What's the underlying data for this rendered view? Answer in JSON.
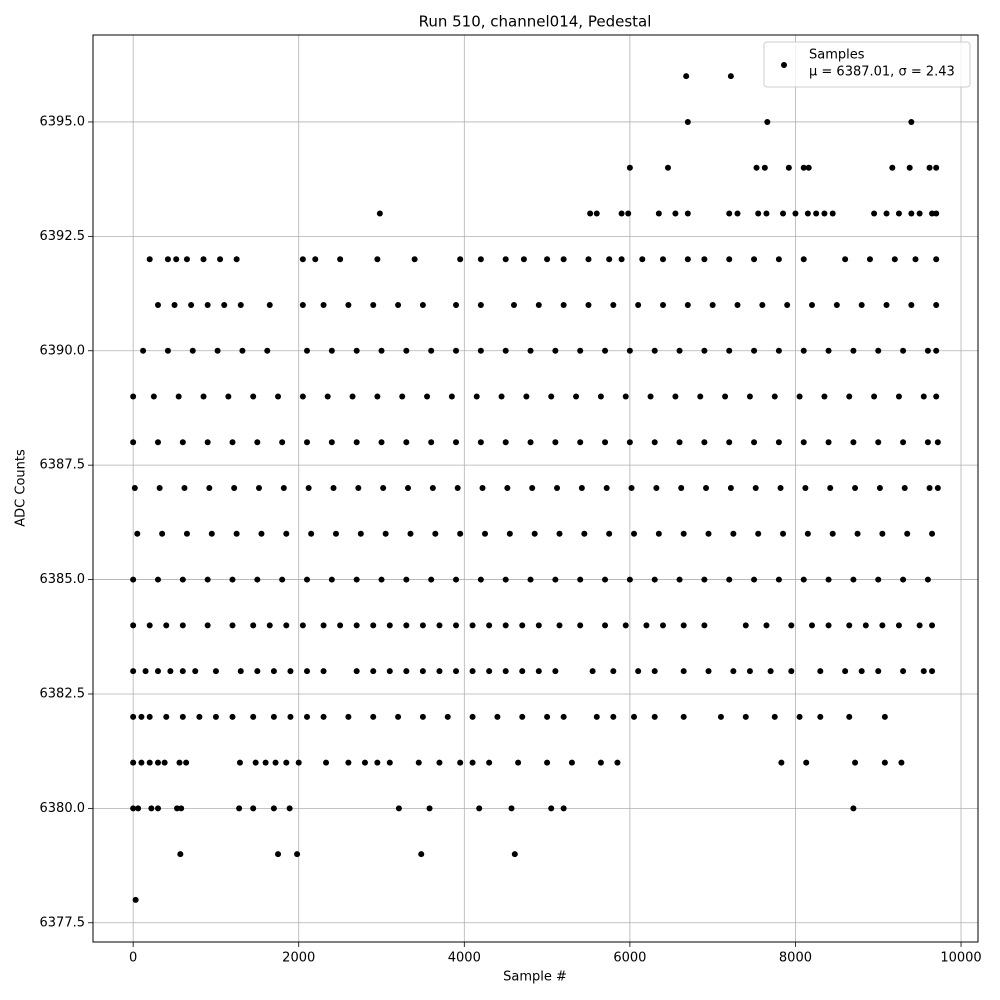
{
  "chart_data": {
    "type": "scatter",
    "title": "Run 510, channel014, Pedestal",
    "x_label": "Sample #",
    "y_label": "ADC Counts",
    "xlim": [
      -485,
      10205
    ],
    "ylim": [
      6377.08,
      6396.9
    ],
    "xticks": [
      0,
      2000,
      4000,
      6000,
      8000,
      10000
    ],
    "yticks": [
      6377.5,
      {
        "value": 6380,
        "label": "6380.0"
      },
      6382.5,
      {
        "value": 6385,
        "label": "6385.0"
      },
      6387.5,
      {
        "value": 6390,
        "label": "6390.0"
      },
      6392.5,
      {
        "value": 6395,
        "label": "6395.0"
      }
    ],
    "grid": true,
    "legend": "upper right",
    "annotation": "μ = 6387.01, σ = 2.43",
    "series": [
      {
        "name": "Samples",
        "color": "#000000",
        "x": [
          30,
          570,
          1750,
          1980,
          3480,
          4610,
          0,
          60,
          220,
          300,
          530,
          580,
          1280,
          1450,
          1700,
          1890,
          3210,
          3580,
          4180,
          4570,
          5050,
          5200,
          8700,
          0,
          100,
          200,
          300,
          380,
          560,
          640,
          1290,
          1480,
          1600,
          1720,
          1850,
          2000,
          2330,
          2600,
          2800,
          2950,
          3100,
          3450,
          3700,
          3950,
          4100,
          4300,
          4650,
          5000,
          5300,
          5650,
          5850,
          7830,
          8130,
          8720,
          9080,
          9280,
          0,
          100,
          200,
          400,
          600,
          800,
          1000,
          1200,
          1450,
          1700,
          1900,
          2100,
          2300,
          2600,
          2900,
          3200,
          3500,
          3800,
          4100,
          4400,
          4700,
          5000,
          5200,
          5600,
          5800,
          6050,
          6300,
          6650,
          7100,
          7400,
          7750,
          8050,
          8300,
          8650,
          9080,
          0,
          150,
          300,
          450,
          600,
          750,
          1000,
          1300,
          1500,
          1700,
          1900,
          2100,
          2300,
          2700,
          2900,
          3100,
          3300,
          3500,
          3700,
          3900,
          4100,
          4300,
          4500,
          4700,
          4900,
          5100,
          5550,
          5800,
          6100,
          6300,
          6650,
          6950,
          7250,
          7450,
          7700,
          7950,
          8300,
          8600,
          8800,
          9000,
          9300,
          9550,
          9650,
          0,
          200,
          400,
          600,
          900,
          1200,
          1450,
          1650,
          1850,
          2050,
          2300,
          2500,
          2700,
          2900,
          3100,
          3300,
          3500,
          3700,
          3900,
          4100,
          4300,
          4500,
          4700,
          4900,
          5150,
          5400,
          5700,
          5950,
          6200,
          6400,
          6650,
          6900,
          7400,
          7650,
          7950,
          8200,
          8400,
          8650,
          8850,
          9050,
          9250,
          9500,
          9650,
          0,
          300,
          600,
          900,
          1200,
          1500,
          1800,
          2100,
          2400,
          2700,
          3000,
          3300,
          3600,
          3900,
          4200,
          4500,
          4800,
          5100,
          5400,
          5700,
          6000,
          6300,
          6600,
          6900,
          7200,
          7500,
          7800,
          8100,
          8400,
          8700,
          9000,
          9300,
          9600,
          50,
          350,
          650,
          950,
          1250,
          1550,
          1850,
          2150,
          2450,
          2750,
          3050,
          3350,
          3650,
          3950,
          4250,
          4550,
          4850,
          5150,
          5450,
          5750,
          6050,
          6350,
          6650,
          6950,
          7250,
          7550,
          7850,
          8150,
          8450,
          8750,
          9050,
          9350,
          9650,
          20,
          320,
          620,
          920,
          1220,
          1520,
          1820,
          2120,
          2420,
          2720,
          3020,
          3320,
          3620,
          3920,
          4220,
          4520,
          4820,
          5120,
          5420,
          5720,
          6020,
          6320,
          6620,
          6920,
          7220,
          7520,
          7820,
          8120,
          8420,
          8720,
          9020,
          9320,
          9620,
          9720,
          0,
          300,
          600,
          900,
          1200,
          1500,
          1800,
          2100,
          2400,
          2700,
          3000,
          3300,
          3600,
          3900,
          4200,
          4500,
          4800,
          5100,
          5400,
          5700,
          6000,
          6300,
          6600,
          6900,
          7200,
          7500,
          7800,
          8100,
          8400,
          8700,
          9000,
          9300,
          9600,
          9720,
          0,
          250,
          550,
          850,
          1150,
          1450,
          1750,
          2050,
          2350,
          2650,
          2950,
          3250,
          3550,
          3850,
          4150,
          4450,
          4750,
          5050,
          5350,
          5650,
          5950,
          6250,
          6550,
          6850,
          7150,
          7450,
          7750,
          8050,
          8350,
          8650,
          8950,
          9250,
          9550,
          9700,
          120,
          420,
          720,
          1020,
          1320,
          1620,
          2100,
          2400,
          2700,
          3000,
          3300,
          3600,
          3900,
          4200,
          4500,
          4800,
          5100,
          5400,
          5700,
          6000,
          6300,
          6600,
          6900,
          7200,
          7500,
          7800,
          8100,
          8400,
          8700,
          9000,
          9300,
          9600,
          9700,
          300,
          500,
          700,
          900,
          1100,
          1300,
          1650,
          2050,
          2300,
          2600,
          2900,
          3200,
          3500,
          3900,
          4200,
          4600,
          4900,
          5200,
          5500,
          5800,
          6100,
          6400,
          6700,
          7000,
          7300,
          7600,
          7900,
          8200,
          8500,
          8800,
          9100,
          9400,
          9700,
          200,
          420,
          520,
          650,
          850,
          1050,
          1250,
          2050,
          2200,
          2500,
          2950,
          3400,
          3950,
          4200,
          4500,
          4720,
          5000,
          5200,
          5500,
          5750,
          5900,
          6150,
          6400,
          6700,
          6900,
          7200,
          7500,
          7800,
          8100,
          8600,
          8900,
          9200,
          9450,
          9700,
          2980,
          5520,
          5600,
          5900,
          5980,
          6350,
          6550,
          6700,
          7200,
          7300,
          7550,
          7650,
          7850,
          8000,
          8150,
          8250,
          8350,
          8450,
          8950,
          9100,
          9250,
          9400,
          9500,
          9650,
          9700,
          6000,
          6460,
          7530,
          7630,
          7920,
          8100,
          8160,
          9170,
          9380,
          9620,
          9700,
          6700,
          7660,
          9400,
          6680,
          7220
        ],
        "y": [
          6378,
          6379,
          6379,
          6379,
          6379,
          6379,
          6380,
          6380,
          6380,
          6380,
          6380,
          6380,
          6380,
          6380,
          6380,
          6380,
          6380,
          6380,
          6380,
          6380,
          6380,
          6380,
          6380,
          6381,
          6381,
          6381,
          6381,
          6381,
          6381,
          6381,
          6381,
          6381,
          6381,
          6381,
          6381,
          6381,
          6381,
          6381,
          6381,
          6381,
          6381,
          6381,
          6381,
          6381,
          6381,
          6381,
          6381,
          6381,
          6381,
          6381,
          6381,
          6381,
          6381,
          6381,
          6381,
          6381,
          6382,
          6382,
          6382,
          6382,
          6382,
          6382,
          6382,
          6382,
          6382,
          6382,
          6382,
          6382,
          6382,
          6382,
          6382,
          6382,
          6382,
          6382,
          6382,
          6382,
          6382,
          6382,
          6382,
          6382,
          6382,
          6382,
          6382,
          6382,
          6382,
          6382,
          6382,
          6382,
          6382,
          6382,
          6382,
          6383,
          6383,
          6383,
          6383,
          6383,
          6383,
          6383,
          6383,
          6383,
          6383,
          6383,
          6383,
          6383,
          6383,
          6383,
          6383,
          6383,
          6383,
          6383,
          6383,
          6383,
          6383,
          6383,
          6383,
          6383,
          6383,
          6383,
          6383,
          6383,
          6383,
          6383,
          6383,
          6383,
          6383,
          6383,
          6383,
          6383,
          6383,
          6383,
          6383,
          6383,
          6383,
          6383,
          6384,
          6384,
          6384,
          6384,
          6384,
          6384,
          6384,
          6384,
          6384,
          6384,
          6384,
          6384,
          6384,
          6384,
          6384,
          6384,
          6384,
          6384,
          6384,
          6384,
          6384,
          6384,
          6384,
          6384,
          6384,
          6384,
          6384,
          6384,
          6384,
          6384,
          6384,
          6384,
          6384,
          6384,
          6384,
          6384,
          6384,
          6384,
          6384,
          6384,
          6384,
          6384,
          6384,
          6385,
          6385,
          6385,
          6385,
          6385,
          6385,
          6385,
          6385,
          6385,
          6385,
          6385,
          6385,
          6385,
          6385,
          6385,
          6385,
          6385,
          6385,
          6385,
          6385,
          6385,
          6385,
          6385,
          6385,
          6385,
          6385,
          6385,
          6385,
          6385,
          6385,
          6385,
          6385,
          6385,
          6386,
          6386,
          6386,
          6386,
          6386,
          6386,
          6386,
          6386,
          6386,
          6386,
          6386,
          6386,
          6386,
          6386,
          6386,
          6386,
          6386,
          6386,
          6386,
          6386,
          6386,
          6386,
          6386,
          6386,
          6386,
          6386,
          6386,
          6386,
          6386,
          6386,
          6386,
          6386,
          6386,
          6387,
          6387,
          6387,
          6387,
          6387,
          6387,
          6387,
          6387,
          6387,
          6387,
          6387,
          6387,
          6387,
          6387,
          6387,
          6387,
          6387,
          6387,
          6387,
          6387,
          6387,
          6387,
          6387,
          6387,
          6387,
          6387,
          6387,
          6387,
          6387,
          6387,
          6387,
          6387,
          6387,
          6387,
          6388,
          6388,
          6388,
          6388,
          6388,
          6388,
          6388,
          6388,
          6388,
          6388,
          6388,
          6388,
          6388,
          6388,
          6388,
          6388,
          6388,
          6388,
          6388,
          6388,
          6388,
          6388,
          6388,
          6388,
          6388,
          6388,
          6388,
          6388,
          6388,
          6388,
          6388,
          6388,
          6388,
          6388,
          6389,
          6389,
          6389,
          6389,
          6389,
          6389,
          6389,
          6389,
          6389,
          6389,
          6389,
          6389,
          6389,
          6389,
          6389,
          6389,
          6389,
          6389,
          6389,
          6389,
          6389,
          6389,
          6389,
          6389,
          6389,
          6389,
          6389,
          6389,
          6389,
          6389,
          6389,
          6389,
          6389,
          6389,
          6390,
          6390,
          6390,
          6390,
          6390,
          6390,
          6390,
          6390,
          6390,
          6390,
          6390,
          6390,
          6390,
          6390,
          6390,
          6390,
          6390,
          6390,
          6390,
          6390,
          6390,
          6390,
          6390,
          6390,
          6390,
          6390,
          6390,
          6390,
          6390,
          6390,
          6390,
          6390,
          6390,
          6391,
          6391,
          6391,
          6391,
          6391,
          6391,
          6391,
          6391,
          6391,
          6391,
          6391,
          6391,
          6391,
          6391,
          6391,
          6391,
          6391,
          6391,
          6391,
          6391,
          6391,
          6391,
          6391,
          6391,
          6391,
          6391,
          6391,
          6391,
          6391,
          6391,
          6391,
          6391,
          6391,
          6392,
          6392,
          6392,
          6392,
          6392,
          6392,
          6392,
          6392,
          6392,
          6392,
          6392,
          6392,
          6392,
          6392,
          6392,
          6392,
          6392,
          6392,
          6392,
          6392,
          6392,
          6392,
          6392,
          6392,
          6392,
          6392,
          6392,
          6392,
          6392,
          6392,
          6392,
          6392,
          6392,
          6392,
          6393,
          6393,
          6393,
          6393,
          6393,
          6393,
          6393,
          6393,
          6393,
          6393,
          6393,
          6393,
          6393,
          6393,
          6393,
          6393,
          6393,
          6393,
          6393,
          6393,
          6393,
          6393,
          6393,
          6393,
          6393,
          6394,
          6394,
          6394,
          6394,
          6394,
          6394,
          6394,
          6394,
          6394,
          6394,
          6394,
          6395,
          6395,
          6395,
          6396,
          6396
        ]
      }
    ]
  }
}
